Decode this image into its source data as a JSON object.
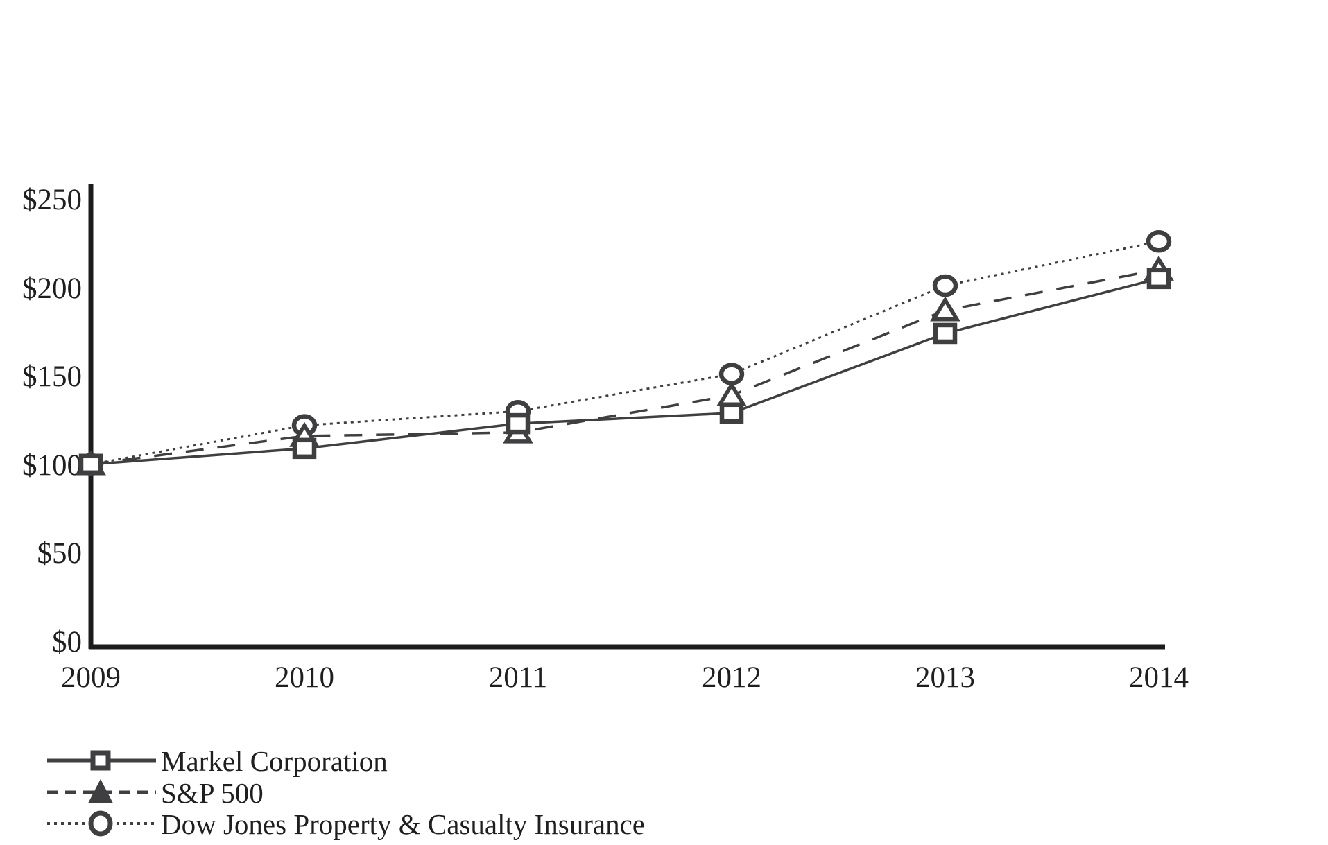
{
  "chart_data": {
    "type": "line",
    "title": "",
    "x_labels": [
      "2009",
      "2010",
      "2011",
      "2012",
      "2013",
      "2014"
    ],
    "xlabel": "",
    "ylabel": "",
    "ylim": [
      0,
      250
    ],
    "grid": false,
    "legend_position": "bottom-left",
    "yticks": [
      {
        "value": 250,
        "label": "$250"
      },
      {
        "value": 200,
        "label": "$200"
      },
      {
        "value": 150,
        "label": "$150"
      },
      {
        "value": 100,
        "label": "$100"
      },
      {
        "value": 50,
        "label": "$50"
      },
      {
        "value": 0,
        "label": "$0"
      }
    ],
    "series": [
      {
        "name": "Markel Corporation",
        "marker": "square",
        "line_style": "solid",
        "values": [
          100,
          109,
          123,
          129,
          174,
          205
        ]
      },
      {
        "name": "S&P 500",
        "marker": "triangle",
        "line_style": "dashed",
        "values": [
          100,
          116,
          118,
          139,
          187,
          210
        ]
      },
      {
        "name": "Dow Jones Property & Casualty Insurance",
        "marker": "circle",
        "line_style": "dotted",
        "values": [
          100,
          122,
          130,
          151,
          201,
          226
        ]
      }
    ],
    "colors": {
      "line": "#3f3f41",
      "axis": "#1c1c1e",
      "text": "#1f1f21",
      "marker_fill": "#ffffff"
    }
  }
}
